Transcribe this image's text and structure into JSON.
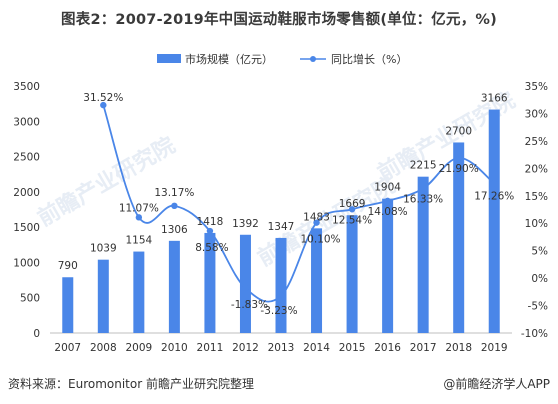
{
  "title": "图表2：2007-2019年中国运动鞋服市场零售额(单位：亿元，%)",
  "source": "资料来源：Euromonitor 前瞻产业研究院整理",
  "brand": "@前瞻经济学人APP",
  "watermark": "前瞻产业研究院",
  "colors": {
    "bar": "#4a86e8",
    "line": "#4a86e8",
    "axis": "#bfbfbf",
    "text": "#333333"
  },
  "chart_data": {
    "type": "bar",
    "categories": [
      "2007",
      "2008",
      "2009",
      "2010",
      "2011",
      "2012",
      "2013",
      "2014",
      "2015",
      "2016",
      "2017",
      "2018",
      "2019"
    ],
    "series": [
      {
        "name": "市场规模（亿元）",
        "type": "bar",
        "axis": "left",
        "values": [
          790,
          1039,
          1154,
          1306,
          1418,
          1392,
          1347,
          1483,
          1669,
          1904,
          2215,
          2700,
          3166
        ],
        "labels": [
          "790",
          "1039",
          "1154",
          "1306",
          "1418",
          "1392",
          "1347",
          "1483",
          "1669",
          "1904",
          "2215",
          "2700",
          "3166"
        ]
      },
      {
        "name": "同比增长（%）",
        "type": "line",
        "axis": "right",
        "values": [
          null,
          31.52,
          11.07,
          13.17,
          8.58,
          -1.83,
          -3.23,
          10.1,
          12.54,
          14.08,
          16.33,
          21.9,
          17.26
        ],
        "labels": [
          "",
          "31.52%",
          "11.07%",
          "13.17%",
          "8.58%",
          "-1.83%",
          "-3.23%",
          "10.10%",
          "12.54%",
          "14.08%",
          "16.33%",
          "21.90%",
          "17.26%"
        ]
      }
    ],
    "y_left": {
      "min": 0,
      "max": 3500,
      "step": 500,
      "ticks": [
        "0",
        "500",
        "1000",
        "1500",
        "2000",
        "2500",
        "3000",
        "3500"
      ]
    },
    "y_right": {
      "min": -10,
      "max": 35,
      "step": 5,
      "ticks": [
        "-10%",
        "-5%",
        "0%",
        "5%",
        "10%",
        "15%",
        "20%",
        "25%",
        "30%",
        "35%"
      ]
    },
    "legend_position": "top-center",
    "grid": false
  }
}
